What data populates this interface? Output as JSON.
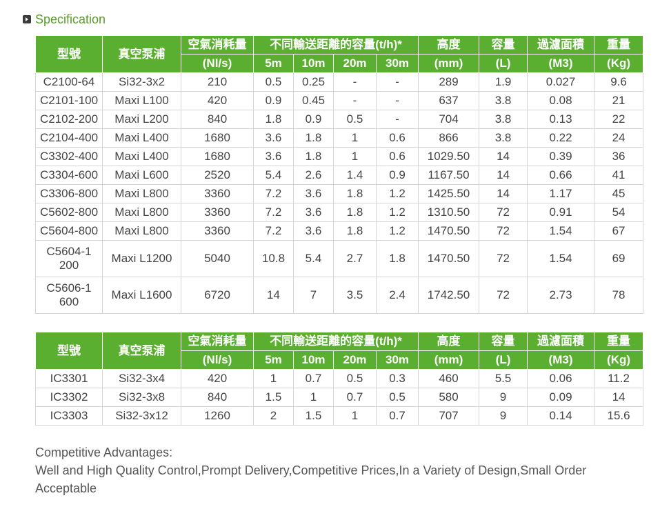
{
  "section": {
    "title": "Specification"
  },
  "header": {
    "model": "型號",
    "pump": "真空泵浦",
    "air": "空氣消耗量",
    "air_unit": "(Nl/s)",
    "capacity": "不同輸送距離的容量(t/h)*",
    "d5": "5m",
    "d10": "10m",
    "d20": "20m",
    "d30": "30m",
    "height": "高度",
    "height_unit": "(mm)",
    "volume": "容量",
    "volume_unit": "(L)",
    "filter": "過濾面積",
    "filter_unit": "(M3)",
    "weight": "重量",
    "weight_unit": "(Kg)"
  },
  "table1": {
    "rows": [
      [
        "C2100-64",
        "Si32-3x2",
        "210",
        "0.5",
        "0.25",
        "-",
        "-",
        "289",
        "1.9",
        "0.027",
        "9.6"
      ],
      [
        "C2101-100",
        "Maxi L100",
        "420",
        "0.9",
        "0.45",
        "-",
        "-",
        "637",
        "3.8",
        "0.08",
        "21"
      ],
      [
        "C2102-200",
        "Maxi L200",
        "840",
        "1.8",
        "0.9",
        "0.5",
        "-",
        "704",
        "3.8",
        "0.13",
        "22"
      ],
      [
        "C2104-400",
        "Maxi L400",
        "1680",
        "3.6",
        "1.8",
        "1",
        "0.6",
        "866",
        "3.8",
        "0.22",
        "24"
      ],
      [
        "C3302-400",
        "Maxi L400",
        "1680",
        "3.6",
        "1.8",
        "1",
        "0.6",
        "1029.50",
        "14",
        "0.39",
        "36"
      ],
      [
        "C3304-600",
        "Maxi L600",
        "2520",
        "5.4",
        "2.6",
        "1.4",
        "0.9",
        "1167.50",
        "14",
        "0.66",
        "41"
      ],
      [
        "C3306-800",
        "Maxi L800",
        "3360",
        "7.2",
        "3.6",
        "1.8",
        "1.2",
        "1425.50",
        "14",
        "1.17",
        "45"
      ],
      [
        "C5602-800",
        "Maxi L800",
        "3360",
        "7.2",
        "3.6",
        "1.8",
        "1.2",
        "1310.50",
        "72",
        "0.91",
        "54"
      ],
      [
        "C5604-800",
        "Maxi L800",
        "3360",
        "7.2",
        "3.6",
        "1.8",
        "1.2",
        "1470.50",
        "72",
        "1.54",
        "67"
      ],
      [
        "C5604-1200",
        "Maxi L1200",
        "5040",
        "10.8",
        "5.4",
        "2.7",
        "1.8",
        "1470.50",
        "72",
        "1.54",
        "69"
      ],
      [
        "C5606-1600",
        "Maxi L1600",
        "6720",
        "14",
        "7",
        "3.5",
        "2.4",
        "1742.50",
        "72",
        "2.73",
        "78"
      ]
    ]
  },
  "table2": {
    "rows": [
      [
        "IC3301",
        "Si32-3x4",
        "420",
        "1",
        "0.7",
        "0.5",
        "0.3",
        "460",
        "5.5",
        "0.06",
        "11.2"
      ],
      [
        "IC3302",
        "Si32-3x8",
        "840",
        "1.5",
        "1",
        "0.7",
        "0.5",
        "580",
        "9",
        "0.09",
        "14"
      ],
      [
        "IC3303",
        "Si32-3x12",
        "1260",
        "2",
        "1.5",
        "1",
        "0.7",
        "707",
        "9",
        "0.14",
        "15.6"
      ]
    ]
  },
  "footer": {
    "line1": "Competitive Advantages:",
    "line2": "Well and High Quality Control,Prompt Delivery,Competitive Prices,In a Variety of Design,Small Order Acceptable"
  },
  "colors": {
    "header_green": "#5aae30",
    "title_green": "#5a9a2a"
  }
}
